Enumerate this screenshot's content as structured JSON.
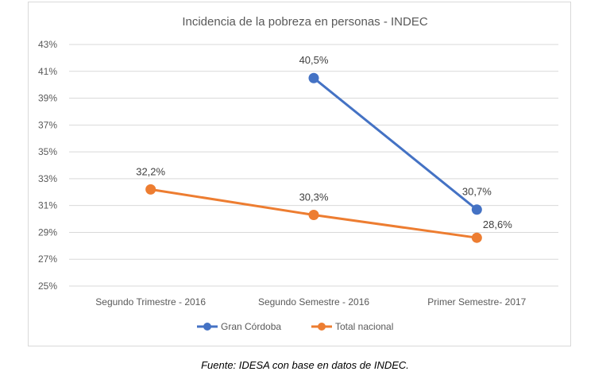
{
  "chart_data": {
    "type": "line",
    "title": "Incidencia de la pobreza en personas - INDEC",
    "categories": [
      "Segundo Trimestre - 2016",
      "Segundo Semestre - 2016",
      "Primer Semestre- 2017"
    ],
    "series": [
      {
        "name": "Gran Córdoba",
        "color": "#4472c4",
        "values": [
          null,
          40.5,
          30.7
        ],
        "labels": [
          "",
          "40,5%",
          "30,7%"
        ]
      },
      {
        "name": "Total nacional",
        "color": "#ed7d31",
        "values": [
          32.2,
          30.3,
          28.6
        ],
        "labels": [
          "32,2%",
          "30,3%",
          "28,6%"
        ]
      }
    ],
    "ylim": [
      25,
      43
    ],
    "yticks": [
      "25%",
      "27%",
      "29%",
      "31%",
      "33%",
      "35%",
      "37%",
      "39%",
      "41%",
      "43%"
    ],
    "grid": true,
    "legend": "bottom"
  },
  "source": "Fuente: IDESA con base en datos de INDEC."
}
